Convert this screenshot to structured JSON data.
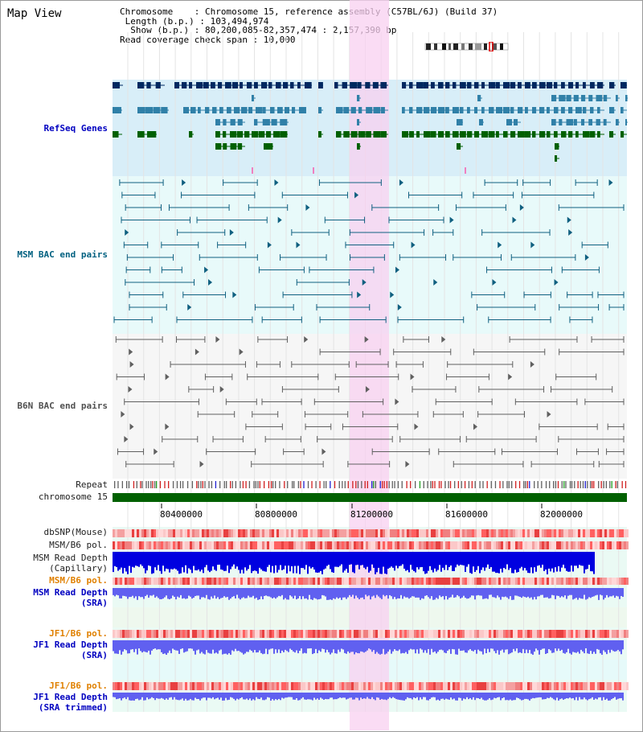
{
  "view_title": "Map View",
  "info": {
    "chromosome": "Chromosome    : Chromosome 15, reference assembly (C57BL/6J) (Build 37)",
    "length": " Length (b.p.) : 103,494,974",
    "show": "  Show (b.p.) : 80,200,085-82,357,474 : 2,157,390 bp",
    "coverage": "Read coverage check span : 10,000"
  },
  "tracks": {
    "refseq": "RefSeq Genes",
    "msm_bac": "MSM BAC end pairs",
    "b6n_bac": "B6N BAC end pairs",
    "repeat": "Repeat",
    "chromosome": "chromosome 15",
    "dbsnp": "dbSNP(Mouse)",
    "msm_b6_pol_1": "MSM/B6 pol.",
    "msm_depth_cap_1": "MSM Read Depth",
    "msm_depth_cap_2": "(Capillary)",
    "msm_b6_pol_2": "MSM/B6 pol.",
    "msm_depth_sra_1": "MSM Read Depth",
    "msm_depth_sra_2": "(SRA)",
    "jf1_b6_pol_1": "JF1/B6 pol.",
    "jf1_depth_sra_1": "JF1 Read Depth",
    "jf1_depth_sra_2": "(SRA)",
    "jf1_b6_pol_2": "JF1/B6 pol.",
    "jf1_depth_trim_1": "JF1 Read Depth",
    "jf1_depth_trim_2": "(SRA trimmed)"
  },
  "axis": {
    "ticks": [
      "80400000",
      "80800000",
      "81200000",
      "81600000",
      "82000000"
    ]
  },
  "colors": {
    "refseq_bg": "#d8eef8",
    "bac_bg": "#e8fafa",
    "highlight": "#f8d0f0",
    "gene_dark": "#002860",
    "gene_mid": "#3080a8",
    "gene_green": "#006000",
    "msm_bac": "#106080",
    "b6n_bac": "#606060",
    "chromosome_bar": "#006000",
    "snp_red": "#e84040",
    "depth_blue": "#0000e0",
    "depth_light_blue": "#6060f0"
  }
}
